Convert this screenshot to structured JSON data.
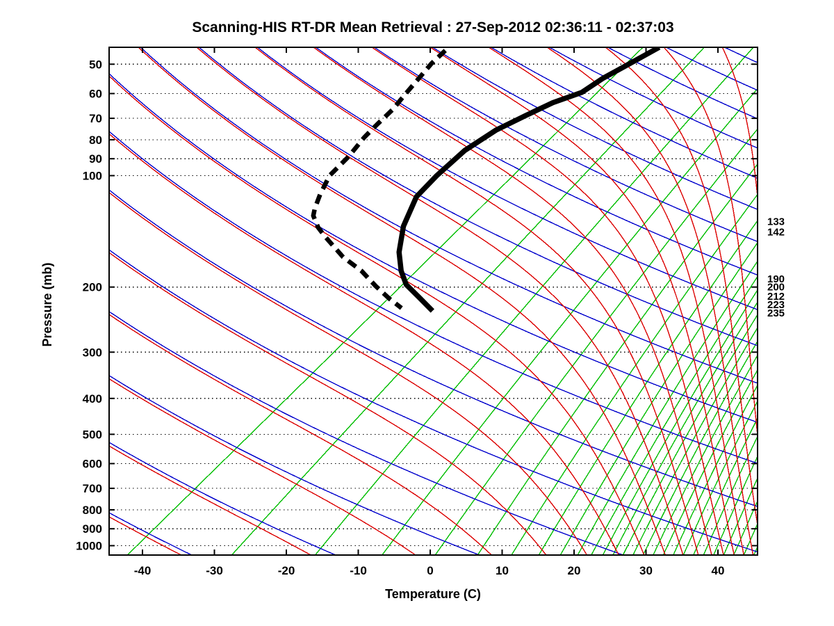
{
  "title": "Scanning-HIS RT-DR Mean Retrieval : 27-Sep-2012 02:36:11 - 02:37:03",
  "chart_data": {
    "type": "line",
    "subtype": "skew-t-log-p-sounding",
    "title": "Scanning-HIS RT-DR Mean Retrieval : 27-Sep-2012 02:36:11 - 02:37:03",
    "xlabel": "Temperature (C)",
    "ylabel": "Pressure (mb)",
    "x_tick_labels": [
      -40,
      -30,
      -20,
      -10,
      0,
      10,
      20,
      30,
      40
    ],
    "y_tick_labels": [
      50,
      60,
      70,
      80,
      90,
      100,
      200,
      300,
      400,
      500,
      600,
      700,
      800,
      900,
      1000
    ],
    "right_pressure_labels": [
      133,
      142,
      190,
      200,
      212,
      223,
      235
    ],
    "x_axis_range_C": [
      -44.64,
      45.51
    ],
    "pressure_range_mb": [
      45,
      1060
    ],
    "skew": 1.0,
    "grid": "dotted horizontal isobars at labeled pressure levels",
    "legend_position": "none",
    "temperature_profile": {
      "name": "temperature",
      "style": "solid",
      "points_p_T": [
        [
          45,
          -38.7
        ],
        [
          50,
          -40.6
        ],
        [
          54.5,
          -42.2
        ],
        [
          59.6,
          -43.2
        ],
        [
          63.5,
          -45.8
        ],
        [
          68.6,
          -47.7
        ],
        [
          75.4,
          -49.9
        ],
        [
          85.5,
          -51.4
        ],
        [
          100,
          -51.8
        ],
        [
          114,
          -51.7
        ],
        [
          137,
          -49.4
        ],
        [
          161,
          -46.4
        ],
        [
          181,
          -43.5
        ],
        [
          197,
          -40.9
        ],
        [
          213,
          -37.4
        ],
        [
          232,
          -33.6
        ]
      ]
    },
    "dewpoint_profile": {
      "name": "dewpoint",
      "style": "dashed",
      "points_p_T": [
        [
          45.9,
          -68.0
        ],
        [
          49.8,
          -68.1
        ],
        [
          60.1,
          -67.5
        ],
        [
          66.3,
          -67.1
        ],
        [
          72.6,
          -67.2
        ],
        [
          78.8,
          -67.2
        ],
        [
          88.7,
          -66.7
        ],
        [
          100,
          -66.7
        ],
        [
          112.4,
          -65.4
        ],
        [
          122.6,
          -64.2
        ],
        [
          128.3,
          -63.4
        ],
        [
          138,
          -61.1
        ],
        [
          146,
          -58.9
        ],
        [
          166,
          -53.5
        ],
        [
          181,
          -49.0
        ],
        [
          199,
          -44.9
        ],
        [
          215,
          -41.3
        ],
        [
          228,
          -38.3
        ]
      ]
    },
    "background_lines": {
      "isobar_gridlines_mb": [
        50,
        60,
        70,
        80,
        90,
        100,
        200,
        300,
        400,
        500,
        600,
        700,
        800,
        900,
        1000
      ],
      "dry_adiabats_theta_K": [
        240,
        260,
        280,
        300,
        320,
        340,
        360,
        380,
        400,
        420,
        440,
        460,
        480,
        500,
        520,
        540,
        560,
        580,
        600,
        620,
        640,
        660,
        680
      ],
      "moist_adiabats_theta_K": [
        240,
        260,
        280,
        300,
        320,
        340,
        360,
        380,
        400,
        420,
        440,
        460,
        480,
        500,
        520,
        540,
        560,
        580,
        600,
        620,
        640,
        660,
        680
      ],
      "moist_start_offset_K": 0.31,
      "humidity_lines_surface_T_C": [
        -42.1,
        -27.6,
        -16.0,
        -6.7,
        0.7,
        6.6,
        11.3,
        15.1,
        18.1,
        20.5,
        22.4,
        24.0,
        25.4,
        26.8,
        28.2,
        29.6,
        31.0,
        32.4,
        33.8,
        35.2,
        36.6,
        38.0,
        39.4,
        40.8,
        42.2,
        43.6,
        45.0
      ],
      "humidity_line_slope": {
        "base": 1.02,
        "per_degC": 0.0075,
        "ref_T_C": -42,
        "min": 0.44,
        "max": 1.02
      }
    },
    "colors": {
      "temperature_curve": "#000000",
      "dewpoint_curve": "#000000",
      "dry_adiabat": "#0000CC",
      "moist_adiabat": "#DC0000",
      "humidity_line": "#00BE00",
      "gridline": "#000000",
      "frame": "#000000",
      "background": "#FFFFFF"
    }
  }
}
